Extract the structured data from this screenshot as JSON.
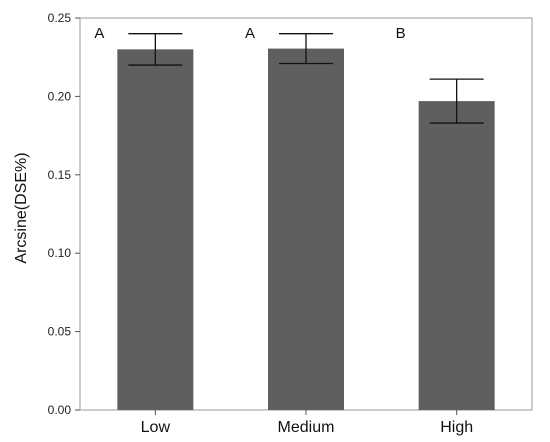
{
  "chart_data": {
    "type": "bar",
    "title": "",
    "xlabel": "",
    "ylabel": "Arcsine(DSE%)",
    "ylim": [
      0,
      0.25
    ],
    "yticks": [
      "0.00",
      "0.05",
      "0.10",
      "0.15",
      "0.20",
      "0.25"
    ],
    "categories": [
      "Low",
      "Medium",
      "High"
    ],
    "values": [
      0.23,
      0.2305,
      0.197
    ],
    "error_upper": [
      0.24,
      0.24,
      0.211
    ],
    "error_lower": [
      0.22,
      0.221,
      0.183
    ],
    "significance_letters": [
      "A",
      "A",
      "B"
    ],
    "bar_color": "#5f5f5f",
    "grid": false,
    "legend": "none"
  }
}
